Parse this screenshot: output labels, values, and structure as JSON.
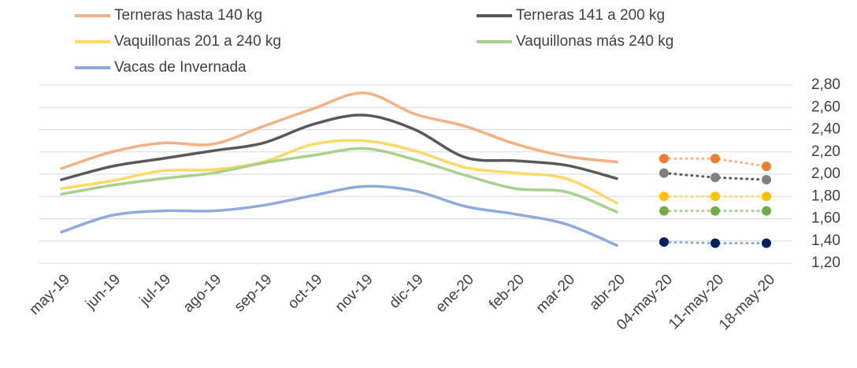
{
  "chart_data": {
    "type": "line",
    "categories": [
      "may-19",
      "jun-19",
      "jul-19",
      "ago-19",
      "sep-19",
      "oct-19",
      "nov-19",
      "dic-19",
      "ene-20",
      "feb-20",
      "mar-20",
      "abr-20",
      "04-may-20",
      "11-may-20",
      "18-may-20"
    ],
    "series": [
      {
        "name": "Terneras hasta 140 kg",
        "color": "#F4B183",
        "marker_color": "#ED7D31",
        "values": [
          2.05,
          2.2,
          2.28,
          2.27,
          2.43,
          2.59,
          2.73,
          2.54,
          2.43,
          2.27,
          2.16,
          2.11,
          2.14,
          2.14,
          2.07
        ]
      },
      {
        "name": "Terneras 141 a 200 kg",
        "color": "#595959",
        "marker_color": "#808080",
        "values": [
          1.95,
          2.07,
          2.14,
          2.21,
          2.28,
          2.45,
          2.53,
          2.4,
          2.15,
          2.12,
          2.08,
          1.96,
          2.01,
          1.97,
          1.95
        ]
      },
      {
        "name": "Vaquillonas 201 a 240 kg",
        "color": "#FFD966",
        "marker_color": "#FFC000",
        "values": [
          1.87,
          1.94,
          2.03,
          2.04,
          2.11,
          2.27,
          2.3,
          2.21,
          2.06,
          2.01,
          1.96,
          1.74,
          1.8,
          1.8,
          1.8
        ]
      },
      {
        "name": "Vaquillonas más 240 kg",
        "color": "#A9D18E",
        "marker_color": "#70AD47",
        "values": [
          1.82,
          1.9,
          1.96,
          2.01,
          2.1,
          2.17,
          2.23,
          2.13,
          1.99,
          1.87,
          1.84,
          1.66,
          1.67,
          1.67,
          1.67
        ]
      },
      {
        "name": "Vacas de Invernada",
        "color": "#8FAADC",
        "marker_color": "#002060",
        "values": [
          1.48,
          1.63,
          1.67,
          1.67,
          1.72,
          1.81,
          1.89,
          1.85,
          1.71,
          1.64,
          1.55,
          1.36,
          1.39,
          1.38,
          1.38
        ]
      }
    ],
    "ylim": [
      1.2,
      2.8
    ],
    "yticks": [
      {
        "value": 1.2,
        "label": "1,20"
      },
      {
        "value": 1.4,
        "label": "1,40"
      },
      {
        "value": 1.6,
        "label": "1,60"
      },
      {
        "value": 1.8,
        "label": "1,80"
      },
      {
        "value": 2.0,
        "label": "2,00"
      },
      {
        "value": 2.2,
        "label": "2,20"
      },
      {
        "value": 2.4,
        "label": "2,40"
      },
      {
        "value": 2.6,
        "label": "2,60"
      },
      {
        "value": 2.8,
        "label": "2,80"
      }
    ],
    "grid": true
  }
}
